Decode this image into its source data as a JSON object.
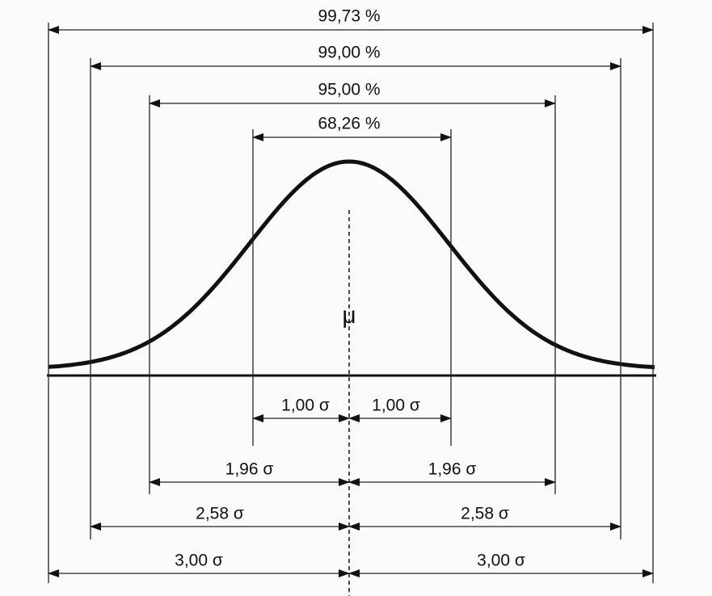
{
  "top_spans": [
    "99,73 %",
    "99,00 %",
    "95,00 %",
    "68,26 %"
  ],
  "bottom_spans": [
    {
      "left": "1,00 σ",
      "right": "1,00 σ"
    },
    {
      "left": "1,96 σ",
      "right": "1,96 σ"
    },
    {
      "left": "2,58 σ",
      "right": "2,58 σ"
    },
    {
      "left": "3,00 σ",
      "right": "3,00 σ"
    }
  ],
  "mean_label": "μ"
}
